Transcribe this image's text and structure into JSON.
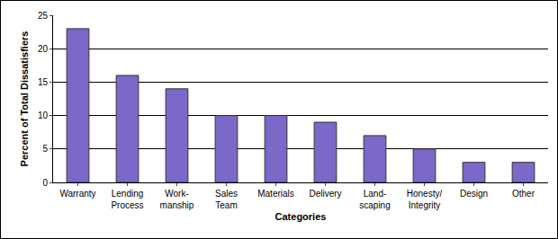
{
  "chart_data": {
    "type": "bar",
    "x_label": "Categories",
    "y_label": "Percent of Total Dissatisfiers",
    "categories": [
      "Warranty",
      "Lending\nProcess",
      "Work-\nmanship",
      "Sales\nTeam",
      "Materials",
      "Delivery",
      "Land-\nscaping",
      "Honesty/\nIntegrity",
      "Design",
      "Other"
    ],
    "values": [
      23,
      16,
      14,
      10,
      10,
      9,
      7,
      5,
      3,
      3
    ],
    "color": "#7b68c8",
    "ylim": [
      0,
      25
    ],
    "yticks": [
      0,
      5,
      10,
      15,
      20,
      25
    ],
    "grid": true
  }
}
